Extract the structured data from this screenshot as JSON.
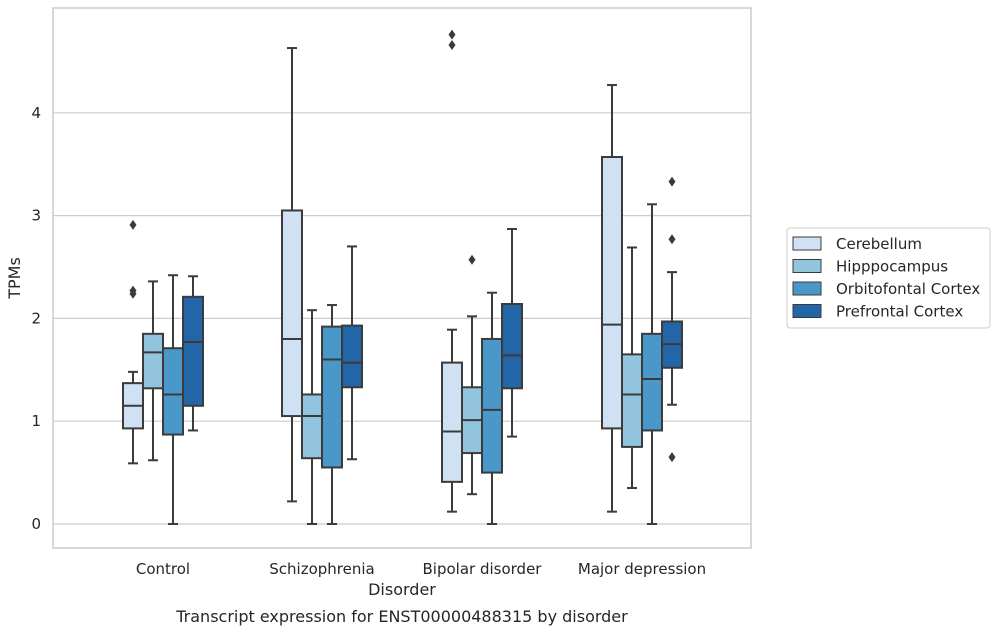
{
  "chart_data": {
    "type": "box",
    "xlabel": "Disorder",
    "ylabel": "TPMs",
    "caption": "Transcript expression for ENST00000488315 by disorder",
    "categories": [
      "Control",
      "Schizophrenia",
      "Bipolar disorder",
      "Major depression"
    ],
    "y_ticks": [
      0,
      1,
      2,
      3,
      4
    ],
    "ylim": [
      -0.23,
      5.0
    ],
    "grid": "horizontal",
    "legend_position": "right",
    "series": [
      {
        "name": "Cerebellum",
        "color": "#cfe1f2",
        "boxes": [
          {
            "whisker_low": 0.59,
            "q1": 0.93,
            "median": 1.15,
            "q3": 1.37,
            "whisker_high": 1.48,
            "outliers": [
              2.91,
              2.24,
              2.27
            ]
          },
          {
            "whisker_low": 0.22,
            "q1": 1.05,
            "median": 1.8,
            "q3": 3.05,
            "whisker_high": 4.63,
            "outliers": []
          },
          {
            "whisker_low": 0.12,
            "q1": 0.41,
            "median": 0.9,
            "q3": 1.57,
            "whisker_high": 1.89,
            "outliers": [
              4.66,
              4.76
            ]
          },
          {
            "whisker_low": 0.12,
            "q1": 0.93,
            "median": 1.94,
            "q3": 3.57,
            "whisker_high": 4.27,
            "outliers": []
          }
        ]
      },
      {
        "name": "Hipppocampus",
        "color": "#93c4de",
        "boxes": [
          {
            "whisker_low": 0.62,
            "q1": 1.32,
            "median": 1.67,
            "q3": 1.85,
            "whisker_high": 2.36,
            "outliers": []
          },
          {
            "whisker_low": 0.0,
            "q1": 0.64,
            "median": 1.05,
            "q3": 1.26,
            "whisker_high": 2.08,
            "outliers": []
          },
          {
            "whisker_low": 0.29,
            "q1": 0.69,
            "median": 1.01,
            "q3": 1.33,
            "whisker_high": 2.02,
            "outliers": [
              2.57
            ]
          },
          {
            "whisker_low": 0.35,
            "q1": 0.75,
            "median": 1.26,
            "q3": 1.65,
            "whisker_high": 2.69,
            "outliers": []
          }
        ]
      },
      {
        "name": "Orbitofontal Cortex",
        "color": "#4a98c9",
        "boxes": [
          {
            "whisker_low": 0.0,
            "q1": 0.87,
            "median": 1.26,
            "q3": 1.71,
            "whisker_high": 2.42,
            "outliers": []
          },
          {
            "whisker_low": 0.0,
            "q1": 0.55,
            "median": 1.6,
            "q3": 1.92,
            "whisker_high": 2.13,
            "outliers": []
          },
          {
            "whisker_low": 0.0,
            "q1": 0.5,
            "median": 1.11,
            "q3": 1.8,
            "whisker_high": 2.25,
            "outliers": []
          },
          {
            "whisker_low": 0.0,
            "q1": 0.91,
            "median": 1.41,
            "q3": 1.85,
            "whisker_high": 3.11,
            "outliers": []
          }
        ]
      },
      {
        "name": "Prefrontal Cortex",
        "color": "#2366a8",
        "boxes": [
          {
            "whisker_low": 0.91,
            "q1": 1.15,
            "median": 1.77,
            "q3": 2.21,
            "whisker_high": 2.41,
            "outliers": []
          },
          {
            "whisker_low": 0.63,
            "q1": 1.33,
            "median": 1.57,
            "q3": 1.93,
            "whisker_high": 2.7,
            "outliers": []
          },
          {
            "whisker_low": 0.85,
            "q1": 1.32,
            "median": 1.64,
            "q3": 2.14,
            "whisker_high": 2.87,
            "outliers": []
          },
          {
            "whisker_low": 1.16,
            "q1": 1.52,
            "median": 1.75,
            "q3": 1.97,
            "whisker_high": 2.45,
            "outliers": [
              2.77,
              3.33,
              0.65
            ]
          }
        ]
      }
    ]
  }
}
